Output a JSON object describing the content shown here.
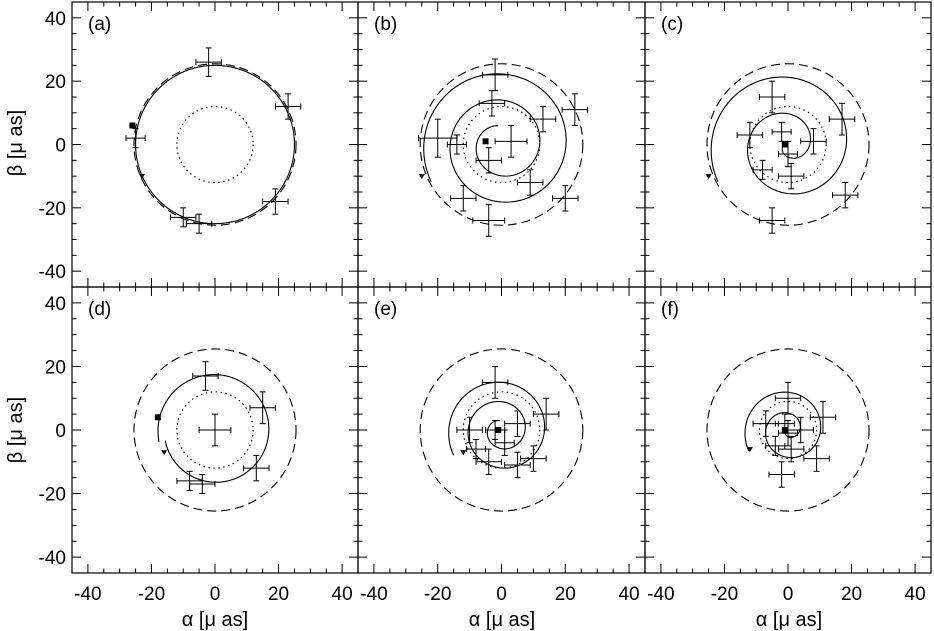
{
  "chart_data": {
    "type": "scatter",
    "xlabel": "α [μ as]",
    "ylabel": "β [μ as]",
    "xlim": [
      -45,
      45
    ],
    "ylim": [
      -45,
      45
    ],
    "xticks": [
      -40,
      -20,
      0,
      20,
      40
    ],
    "yticks": [
      -40,
      -20,
      0,
      20,
      40
    ],
    "panels": [
      {
        "label": "(a)",
        "outer_circle_radius": 25.5,
        "inner_circle_radius": 12,
        "spiral": {
          "start_radius": 25,
          "end_radius": 25,
          "turns": 1.0,
          "start_angle_deg": 192
        },
        "start_marker": [
          -26,
          6
        ],
        "end_marker": [
          -23,
          -10
        ],
        "points": [
          {
            "x": -2,
            "y": 26,
            "xerr": 4,
            "yerr": 4.5
          },
          {
            "x": 23,
            "y": 12,
            "xerr": 4,
            "yerr": 4
          },
          {
            "x": 19,
            "y": -18,
            "xerr": 4,
            "yerr": 4
          },
          {
            "x": -10,
            "y": -23,
            "xerr": 4,
            "yerr": 3
          },
          {
            "x": -5,
            "y": -25,
            "xerr": 4,
            "yerr": 3
          },
          {
            "x": -25,
            "y": 2,
            "xerr": 3,
            "yerr": 3
          }
        ]
      },
      {
        "label": "(b)",
        "outer_circle_radius": 25.5,
        "inner_circle_radius": 12,
        "spiral": {
          "start_radius": 25,
          "end_radius": 6,
          "turns": 2.3,
          "start_angle_deg": 208
        },
        "start_marker": [
          -5,
          1
        ],
        "end_marker": [
          -25,
          -10
        ],
        "points": [
          {
            "x": -2,
            "y": 22,
            "xerr": 4,
            "yerr": 5
          },
          {
            "x": 23,
            "y": 11,
            "xerr": 4,
            "yerr": 5
          },
          {
            "x": 20,
            "y": -17,
            "xerr": 4,
            "yerr": 4
          },
          {
            "x": -20,
            "y": 2,
            "xerr": 6,
            "yerr": 6
          },
          {
            "x": 13,
            "y": 8,
            "xerr": 4,
            "yerr": 4
          },
          {
            "x": -3,
            "y": 13,
            "xerr": 4,
            "yerr": 4
          },
          {
            "x": 3,
            "y": 1,
            "xerr": 5,
            "yerr": 5
          },
          {
            "x": -4,
            "y": -5,
            "xerr": 4,
            "yerr": 4
          },
          {
            "x": -12,
            "y": -17,
            "xerr": 4,
            "yerr": 4
          },
          {
            "x": -4,
            "y": -24,
            "xerr": 5,
            "yerr": 5
          },
          {
            "x": 9,
            "y": -12,
            "xerr": 4,
            "yerr": 4
          },
          {
            "x": -14,
            "y": 0,
            "xerr": 3,
            "yerr": 3
          }
        ]
      },
      {
        "label": "(c)",
        "outer_circle_radius": 25.5,
        "inner_circle_radius": 12,
        "spiral": {
          "start_radius": 25,
          "end_radius": 2,
          "turns": 2.0,
          "start_angle_deg": 208
        },
        "start_marker": [
          -1,
          0
        ],
        "end_marker": [
          -25,
          -10
        ],
        "points": [
          {
            "x": 17,
            "y": 8,
            "xerr": 4,
            "yerr": 5
          },
          {
            "x": 18,
            "y": -16,
            "xerr": 4,
            "yerr": 4
          },
          {
            "x": -5,
            "y": -24,
            "xerr": 4,
            "yerr": 4
          },
          {
            "x": -12,
            "y": 3,
            "xerr": 4,
            "yerr": 4
          },
          {
            "x": -5,
            "y": 15,
            "xerr": 4,
            "yerr": 5
          },
          {
            "x": 8,
            "y": 1,
            "xerr": 4,
            "yerr": 4
          },
          {
            "x": 0,
            "y": -3,
            "xerr": 3,
            "yerr": 4
          },
          {
            "x": -2,
            "y": 4,
            "xerr": 3,
            "yerr": 3
          },
          {
            "x": 1,
            "y": -10,
            "xerr": 4,
            "yerr": 4
          },
          {
            "x": -8,
            "y": -8,
            "xerr": 3,
            "yerr": 3
          }
        ]
      },
      {
        "label": "(d)",
        "outer_circle_radius": 25.5,
        "inner_circle_radius": 12,
        "spiral": {
          "start_radius": 18,
          "end_radius": 16,
          "turns": 1.0,
          "start_angle_deg": 192
        },
        "start_marker": [
          -18,
          4
        ],
        "end_marker": [
          -16,
          -7
        ],
        "points": [
          {
            "x": -3,
            "y": 17,
            "xerr": 4,
            "yerr": 4.5
          },
          {
            "x": 15,
            "y": 7,
            "xerr": 4,
            "yerr": 5
          },
          {
            "x": 13,
            "y": -12,
            "xerr": 4,
            "yerr": 4
          },
          {
            "x": -8,
            "y": -16,
            "xerr": 4,
            "yerr": 3
          },
          {
            "x": -4,
            "y": -17,
            "xerr": 4,
            "yerr": 3
          },
          {
            "x": 0,
            "y": 0,
            "xerr": 5,
            "yerr": 5
          }
        ]
      },
      {
        "label": "(e)",
        "outer_circle_radius": 25.5,
        "inner_circle_radius": 12,
        "spiral": {
          "start_radius": 17,
          "end_radius": 3,
          "turns": 2.3,
          "start_angle_deg": 208
        },
        "start_marker": [
          -1,
          0
        ],
        "end_marker": [
          -12,
          -7
        ],
        "points": [
          {
            "x": -2,
            "y": 15,
            "xerr": 4,
            "yerr": 5
          },
          {
            "x": 14,
            "y": 5,
            "xerr": 4,
            "yerr": 5
          },
          {
            "x": 10,
            "y": -9,
            "xerr": 4,
            "yerr": 4
          },
          {
            "x": -10,
            "y": 0,
            "xerr": 4,
            "yerr": 4
          },
          {
            "x": 5,
            "y": 2,
            "xerr": 4,
            "yerr": 4
          },
          {
            "x": -2,
            "y": 0,
            "xerr": 3,
            "yerr": 3
          },
          {
            "x": 1,
            "y": -4,
            "xerr": 3,
            "yerr": 4
          },
          {
            "x": -4,
            "y": -10,
            "xerr": 4,
            "yerr": 4
          },
          {
            "x": -8,
            "y": -6,
            "xerr": 3,
            "yerr": 3
          },
          {
            "x": 5,
            "y": -11,
            "xerr": 4,
            "yerr": 4
          }
        ]
      },
      {
        "label": "(f)",
        "outer_circle_radius": 25.5,
        "inner_circle_radius": 9,
        "spiral": {
          "start_radius": 14,
          "end_radius": 1,
          "turns": 2.0,
          "start_angle_deg": 208
        },
        "start_marker": [
          -1,
          0
        ],
        "end_marker": [
          -12,
          -6
        ],
        "points": [
          {
            "x": 11,
            "y": 4,
            "xerr": 4,
            "yerr": 5
          },
          {
            "x": 9,
            "y": -9,
            "xerr": 4,
            "yerr": 4
          },
          {
            "x": -2,
            "y": -14,
            "xerr": 4,
            "yerr": 4
          },
          {
            "x": -7,
            "y": 2,
            "xerr": 4,
            "yerr": 4
          },
          {
            "x": 0,
            "y": 10,
            "xerr": 4,
            "yerr": 5
          },
          {
            "x": 4,
            "y": 0,
            "xerr": 4,
            "yerr": 4
          },
          {
            "x": 0,
            "y": -1,
            "xerr": 3,
            "yerr": 4
          },
          {
            "x": -1,
            "y": 2,
            "xerr": 3,
            "yerr": 3
          },
          {
            "x": 1,
            "y": -6,
            "xerr": 4,
            "yerr": 4
          },
          {
            "x": -4,
            "y": -5,
            "xerr": 3,
            "yerr": 3
          }
        ]
      }
    ]
  }
}
